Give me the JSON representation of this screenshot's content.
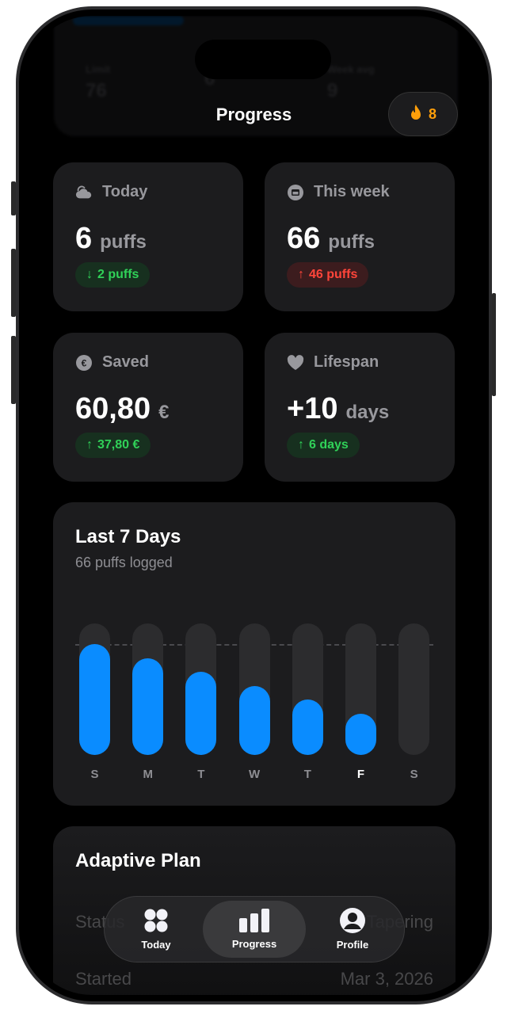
{
  "header": {
    "title": "Progress",
    "streak_count": "8",
    "streak_icon": "flame-icon",
    "background_stats": [
      {
        "label": "Limit",
        "value": "76"
      },
      {
        "label": "",
        "value": "6"
      },
      {
        "label": "Week avg",
        "value": "9"
      }
    ]
  },
  "stats": [
    {
      "icon": "cloud-icon",
      "label": "Today",
      "value": "6",
      "unit": "puffs",
      "delta_arrow": "↓",
      "delta": "2 puffs",
      "delta_tone": "green"
    },
    {
      "icon": "calendar-icon",
      "label": "This week",
      "value": "66",
      "unit": "puffs",
      "delta_arrow": "↑",
      "delta": "46 puffs",
      "delta_tone": "red"
    },
    {
      "icon": "euro-icon",
      "label": "Saved",
      "value": "60,80",
      "unit": "€",
      "delta_arrow": "↑",
      "delta": "37,80 €",
      "delta_tone": "green"
    },
    {
      "icon": "heart-icon",
      "label": "Lifespan",
      "value": "+10",
      "unit": "days",
      "delta_arrow": "↑",
      "delta": "6 days",
      "delta_tone": "green"
    }
  ],
  "chart": {
    "title": "Last 7 Days",
    "subtitle": "66 puffs logged",
    "goal_label": "16"
  },
  "chart_data": {
    "type": "bar",
    "categories": [
      "S",
      "M",
      "T",
      "W",
      "T",
      "F",
      "S"
    ],
    "values": [
      16,
      14,
      12,
      10,
      8,
      6,
      0
    ],
    "goal": 16,
    "ylim": [
      0,
      19
    ],
    "highlight": "F",
    "color": "#0a8cff"
  },
  "plan": {
    "title": "Adaptive Plan",
    "rows": [
      {
        "label": "Status",
        "value": "Tapering"
      },
      {
        "label": "Started",
        "value": "Mar 3, 2026"
      }
    ]
  },
  "tabs": [
    {
      "label": "Today",
      "icon": "grid-icon"
    },
    {
      "label": "Progress",
      "icon": "bar-chart-icon",
      "active": true
    },
    {
      "label": "Profile",
      "icon": "person-circle-icon"
    }
  ]
}
